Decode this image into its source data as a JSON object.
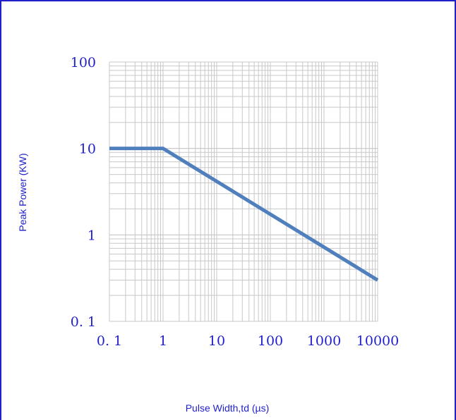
{
  "chart_data": {
    "type": "line",
    "title": "",
    "xlabel": "Pulse Width,td (µs)",
    "ylabel": "Peak Power (KW)",
    "x_scale": "log",
    "y_scale": "log",
    "xlim": [
      0.1,
      10000
    ],
    "ylim": [
      0.1,
      100
    ],
    "x_tick_labels": [
      "0. 1",
      "1",
      "10",
      "100",
      "1000",
      "10000"
    ],
    "y_tick_labels": [
      "100",
      "10",
      "1",
      "0. 1"
    ],
    "grid": true,
    "legend": "none",
    "series": [
      {
        "x": [
          0.1,
          1,
          10000
        ],
        "y": [
          10,
          10,
          0.3
        ],
        "color": "#4f7fbc"
      }
    ]
  },
  "colors": {
    "border": "#1f1fcc",
    "text": "#1f1fcc",
    "grid": "#c8c8c8",
    "line": "#4f7fbc"
  }
}
